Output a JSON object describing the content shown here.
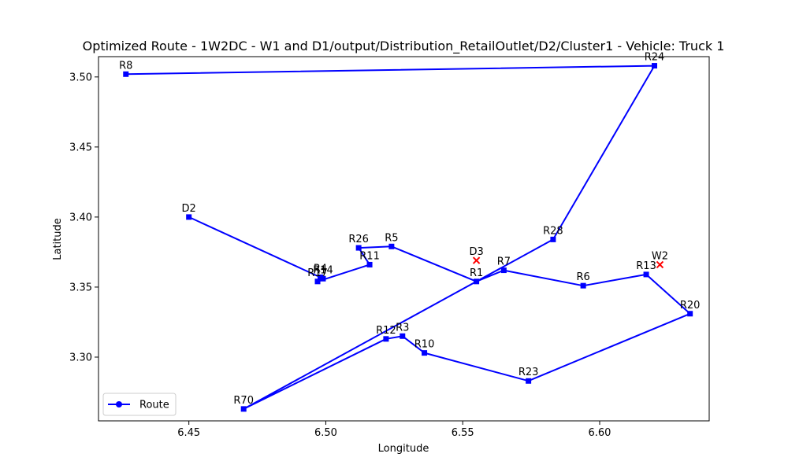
{
  "chart_data": {
    "type": "line",
    "title": "Optimized Route - 1W2DC - W1 and D1/output/Distribution_RetailOutlet/D2/Cluster1 - Vehicle: Truck 1",
    "xlabel": "Longitude",
    "ylabel": "Latitude",
    "xlim": [
      6.417,
      6.64
    ],
    "ylim": [
      3.2545,
      3.5145
    ],
    "x_ticks": [
      6.45,
      6.5,
      6.55,
      6.6
    ],
    "x_tick_labels": [
      "6.45",
      "6.50",
      "6.55",
      "6.60"
    ],
    "y_ticks": [
      3.3,
      3.35,
      3.4,
      3.45,
      3.5
    ],
    "y_tick_labels": [
      "3.30",
      "3.35",
      "3.40",
      "3.45",
      "3.50"
    ],
    "grid": false,
    "legend": {
      "position": "lower-left",
      "entries": [
        "Route"
      ]
    },
    "colors": {
      "route": "#0000ff",
      "depot_marker": "#ff0000"
    },
    "series": [
      {
        "name": "Route",
        "points": [
          {
            "label": "D2",
            "x": 6.45,
            "y": 3.4
          },
          {
            "label": "R4",
            "x": 6.498,
            "y": 3.357
          },
          {
            "label": "R14",
            "x": 6.499,
            "y": 3.356
          },
          {
            "label": "R17",
            "x": 6.497,
            "y": 3.354
          },
          {
            "label": "R11",
            "x": 6.516,
            "y": 3.366
          },
          {
            "label": "R26",
            "x": 6.512,
            "y": 3.378
          },
          {
            "label": "R5",
            "x": 6.524,
            "y": 3.379
          },
          {
            "label": "R1",
            "x": 6.555,
            "y": 3.354
          },
          {
            "label": "R7",
            "x": 6.565,
            "y": 3.362
          },
          {
            "label": "R6",
            "x": 6.594,
            "y": 3.351
          },
          {
            "label": "R13",
            "x": 6.617,
            "y": 3.359
          },
          {
            "label": "R20",
            "x": 6.633,
            "y": 3.331
          },
          {
            "label": "R23",
            "x": 6.574,
            "y": 3.283
          },
          {
            "label": "R10",
            "x": 6.536,
            "y": 3.303
          },
          {
            "label": "R3",
            "x": 6.528,
            "y": 3.315
          },
          {
            "label": "R12",
            "x": 6.522,
            "y": 3.313
          },
          {
            "label": "R70",
            "x": 6.47,
            "y": 3.263
          },
          {
            "label": "R28",
            "x": 6.583,
            "y": 3.384
          },
          {
            "label": "R24",
            "x": 6.62,
            "y": 3.508
          },
          {
            "label": "R8",
            "x": 6.427,
            "y": 3.502
          }
        ]
      }
    ],
    "other_points": [
      {
        "label": "D3",
        "x": 6.555,
        "y": 3.369,
        "marker": "x"
      },
      {
        "label": "W2",
        "x": 6.622,
        "y": 3.366,
        "marker": "x"
      }
    ]
  }
}
